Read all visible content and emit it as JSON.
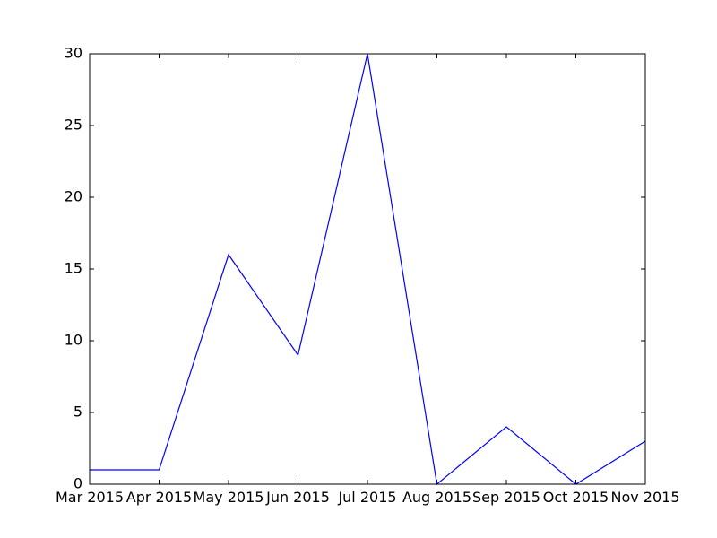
{
  "chart_data": {
    "type": "line",
    "title": "",
    "xlabel": "",
    "ylabel": "",
    "x": [
      "Mar 2015",
      "Apr 2015",
      "May 2015",
      "Jun 2015",
      "Jul 2015",
      "Aug 2015",
      "Sep 2015",
      "Oct 2015",
      "Nov 2015"
    ],
    "series": [
      {
        "values": [
          1,
          1,
          16,
          9,
          30,
          0,
          4,
          0,
          3
        ],
        "color": "#0000ff"
      }
    ],
    "ylim": [
      0,
      30
    ],
    "yticks": [
      0,
      5,
      10,
      15,
      20,
      25,
      30
    ],
    "xtick_labels": [
      "Mar 2015",
      "Apr 2015",
      "May 2015",
      "Jun 2015",
      "Jul 2015",
      "Aug 2015",
      "Sep 2015",
      "Oct 2015",
      "Nov 2015"
    ],
    "grid": false,
    "legend": "none"
  }
}
